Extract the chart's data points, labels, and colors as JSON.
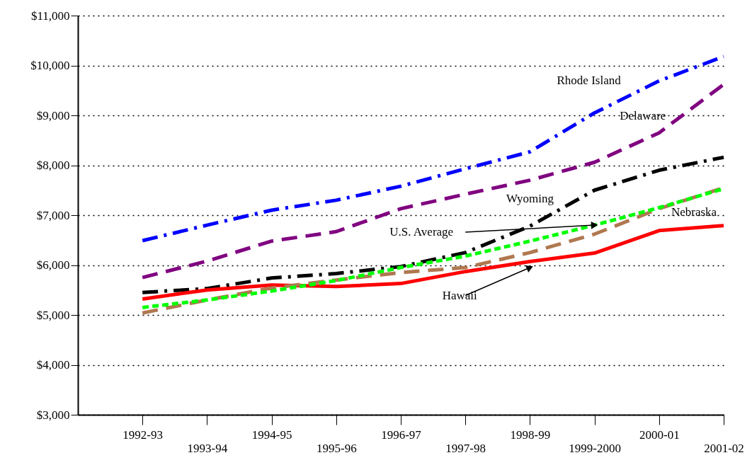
{
  "chart_data": {
    "type": "line",
    "categories": [
      "1992-93",
      "1993-94",
      "1994-95",
      "1995-96",
      "1996-97",
      "1997-98",
      "1998-99",
      "1999-2000",
      "2000-01",
      "2001-02"
    ],
    "ylim": [
      3000,
      11000
    ],
    "yticks": [
      {
        "value": 3000,
        "label": "$3,000"
      },
      {
        "value": 4000,
        "label": "$4,000"
      },
      {
        "value": 5000,
        "label": "$5,000"
      },
      {
        "value": 6000,
        "label": "$6,000"
      },
      {
        "value": 7000,
        "label": "$7,000"
      },
      {
        "value": 8000,
        "label": "$8,000"
      },
      {
        "value": 9000,
        "label": "$9,000"
      },
      {
        "value": 10000,
        "label": "$10,000"
      },
      {
        "value": 11000,
        "label": "$11,000"
      }
    ],
    "grid": "y",
    "legend": false,
    "series": [
      {
        "name": "Rhode Island",
        "color": "#0000ff",
        "line_style": "dashdot",
        "values": [
          6490,
          6800,
          7100,
          7300,
          7580,
          7930,
          8270,
          9050,
          9690,
          10180
        ]
      },
      {
        "name": "Delaware",
        "color": "#800080",
        "line_style": "dashed",
        "values": [
          5750,
          6080,
          6480,
          6670,
          7130,
          7420,
          7700,
          8060,
          8650,
          9620
        ]
      },
      {
        "name": "Wyoming",
        "color": "#000000",
        "line_style": "dashdot",
        "values": [
          5450,
          5530,
          5740,
          5830,
          5970,
          6250,
          6780,
          7500,
          7900,
          8160
        ]
      },
      {
        "name": "Hawaii",
        "color": "#ff0000",
        "line_style": "solid",
        "values": [
          5320,
          5500,
          5600,
          5570,
          5630,
          5870,
          6070,
          6240,
          6690,
          6790
        ]
      },
      {
        "name": "Nebraska",
        "color": "#b07850",
        "line_style": "dashed",
        "values": [
          5040,
          5300,
          5540,
          5700,
          5850,
          5950,
          6250,
          6620,
          7130,
          7550
        ]
      },
      {
        "name": "U.S. Average",
        "color": "#00ff00",
        "line_style": "dotted",
        "values": [
          5150,
          5300,
          5480,
          5690,
          5950,
          6180,
          6480,
          6800,
          7150,
          7530
        ]
      }
    ]
  }
}
